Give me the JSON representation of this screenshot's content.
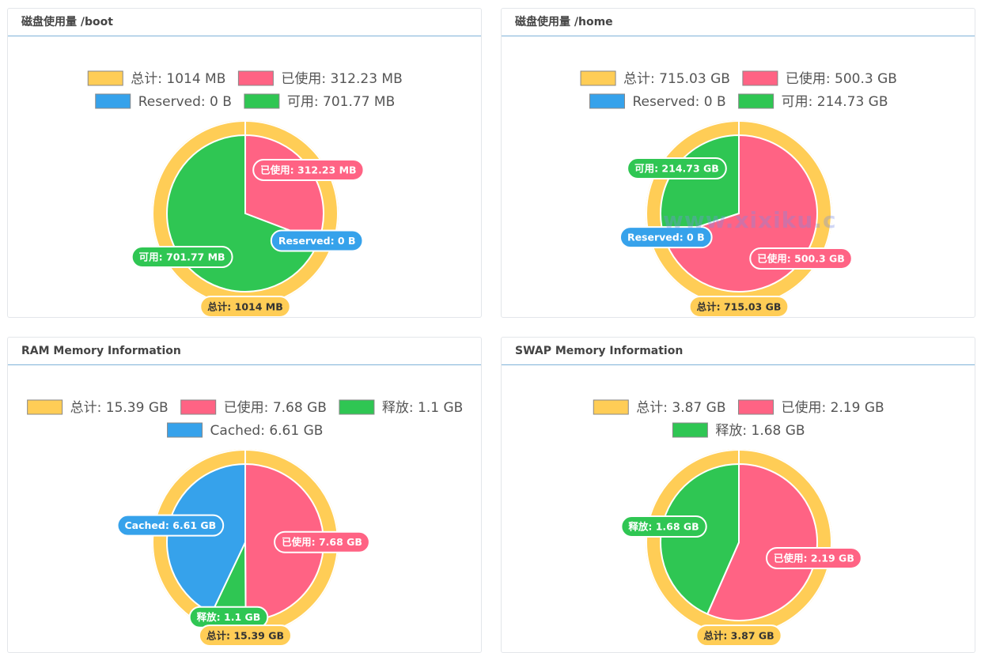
{
  "colors": {
    "total": "#ffcd56",
    "used": "#ff6384",
    "reserved": "#36a2eb",
    "free": "#2fc653"
  },
  "panels": [
    {
      "title": "磁盘使用量 /boot",
      "legend_rows": [
        [
          {
            "label": "总计: 1014 MB",
            "color_key": "total"
          },
          {
            "label": "已使用: 312.23 MB",
            "color_key": "used"
          }
        ],
        [
          {
            "label": "Reserved: 0 B",
            "color_key": "reserved"
          },
          {
            "label": "可用: 701.77 MB",
            "color_key": "free"
          }
        ]
      ],
      "total_label": "总计: 1014 MB"
    },
    {
      "title": "磁盘使用量 /home",
      "legend_rows": [
        [
          {
            "label": "总计: 715.03 GB",
            "color_key": "total"
          },
          {
            "label": "已使用: 500.3 GB",
            "color_key": "used"
          }
        ],
        [
          {
            "label": "Reserved: 0 B",
            "color_key": "reserved"
          },
          {
            "label": "可用: 214.73 GB",
            "color_key": "free"
          }
        ]
      ],
      "total_label": "总计: 715.03 GB"
    },
    {
      "title": "RAM Memory Information",
      "legend_rows": [
        [
          {
            "label": "总计: 15.39 GB",
            "color_key": "total"
          },
          {
            "label": "已使用: 7.68 GB",
            "color_key": "used"
          },
          {
            "label": "释放: 1.1 GB",
            "color_key": "free"
          }
        ],
        [
          {
            "label": "Cached: 6.61 GB",
            "color_key": "reserved"
          }
        ]
      ],
      "total_label": "总计: 15.39 GB"
    },
    {
      "title": "SWAP Memory Information",
      "legend_rows": [
        [
          {
            "label": "总计: 3.87 GB",
            "color_key": "total"
          },
          {
            "label": "已使用: 2.19 GB",
            "color_key": "used"
          }
        ],
        [
          {
            "label": "释放: 1.68 GB",
            "color_key": "free"
          }
        ]
      ],
      "total_label": "总计: 3.87 GB"
    }
  ],
  "chart_data": [
    {
      "type": "pie",
      "title": "磁盘使用量 /boot",
      "outer_ring": {
        "name": "总计",
        "value": 1014,
        "unit": "MB"
      },
      "slices": [
        {
          "name": "已使用",
          "value": 312.23,
          "unit": "MB",
          "color_key": "used",
          "label": "已使用: 312.23 MB"
        },
        {
          "name": "Reserved",
          "value": 0,
          "unit": "B",
          "color_key": "reserved",
          "label": "Reserved: 0 B"
        },
        {
          "name": "可用",
          "value": 701.77,
          "unit": "MB",
          "color_key": "free",
          "label": "可用: 701.77 MB"
        }
      ]
    },
    {
      "type": "pie",
      "title": "磁盘使用量 /home",
      "outer_ring": {
        "name": "总计",
        "value": 715.03,
        "unit": "GB"
      },
      "slices": [
        {
          "name": "已使用",
          "value": 500.3,
          "unit": "GB",
          "color_key": "used",
          "label": "已使用: 500.3 GB"
        },
        {
          "name": "Reserved",
          "value": 0,
          "unit": "B",
          "color_key": "reserved",
          "label": "Reserved: 0 B"
        },
        {
          "name": "可用",
          "value": 214.73,
          "unit": "GB",
          "color_key": "free",
          "label": "可用: 214.73 GB"
        }
      ]
    },
    {
      "type": "pie",
      "title": "RAM Memory Information",
      "outer_ring": {
        "name": "总计",
        "value": 15.39,
        "unit": "GB"
      },
      "slices": [
        {
          "name": "已使用",
          "value": 7.68,
          "unit": "GB",
          "color_key": "used",
          "label": "已使用: 7.68 GB"
        },
        {
          "name": "释放",
          "value": 1.1,
          "unit": "GB",
          "color_key": "free",
          "label": "释放: 1.1 GB"
        },
        {
          "name": "Cached",
          "value": 6.61,
          "unit": "GB",
          "color_key": "reserved",
          "label": "Cached: 6.61 GB"
        }
      ]
    },
    {
      "type": "pie",
      "title": "SWAP Memory Information",
      "outer_ring": {
        "name": "总计",
        "value": 3.87,
        "unit": "GB"
      },
      "slices": [
        {
          "name": "已使用",
          "value": 2.19,
          "unit": "GB",
          "color_key": "used",
          "label": "已使用: 2.19 GB"
        },
        {
          "name": "释放",
          "value": 1.68,
          "unit": "GB",
          "color_key": "free",
          "label": "释放: 1.68 GB"
        }
      ]
    }
  ]
}
